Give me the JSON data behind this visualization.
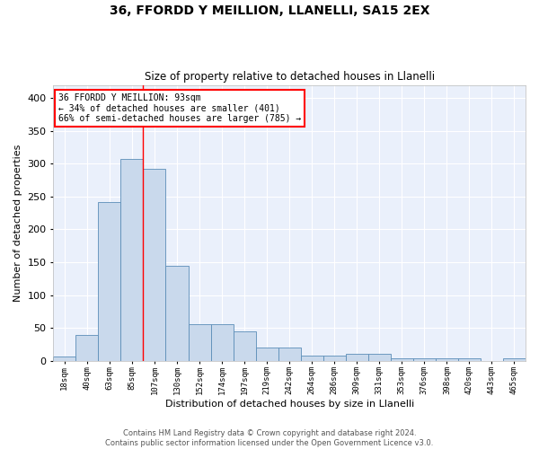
{
  "title_line1": "36, FFORDD Y MEILLION, LLANELLI, SA15 2EX",
  "title_line2": "Size of property relative to detached houses in Llanelli",
  "xlabel": "Distribution of detached houses by size in Llanelli",
  "ylabel": "Number of detached properties",
  "bar_color": "#c9d9ec",
  "bar_edge_color": "#5b8db8",
  "background_color": "#eaf0fb",
  "grid_color": "white",
  "bin_labels": [
    "18sqm",
    "40sqm",
    "63sqm",
    "85sqm",
    "107sqm",
    "130sqm",
    "152sqm",
    "174sqm",
    "197sqm",
    "219sqm",
    "242sqm",
    "264sqm",
    "286sqm",
    "309sqm",
    "331sqm",
    "353sqm",
    "376sqm",
    "398sqm",
    "420sqm",
    "443sqm",
    "465sqm"
  ],
  "bar_values": [
    7,
    39,
    241,
    307,
    292,
    144,
    55,
    55,
    45,
    20,
    20,
    8,
    8,
    11,
    11,
    4,
    4,
    3,
    3,
    0,
    4
  ],
  "red_line_x": 3.5,
  "property_label": "36 FFORDD Y MEILLION: 93sqm",
  "pct_smaller": 34,
  "count_smaller": 401,
  "pct_larger": 66,
  "count_larger": 785,
  "ylim": [
    0,
    420
  ],
  "yticks": [
    0,
    50,
    100,
    150,
    200,
    250,
    300,
    350,
    400
  ],
  "annotation_box_color": "white",
  "annotation_box_edge": "red",
  "footer_line1": "Contains HM Land Registry data © Crown copyright and database right 2024.",
  "footer_line2": "Contains public sector information licensed under the Open Government Licence v3.0."
}
